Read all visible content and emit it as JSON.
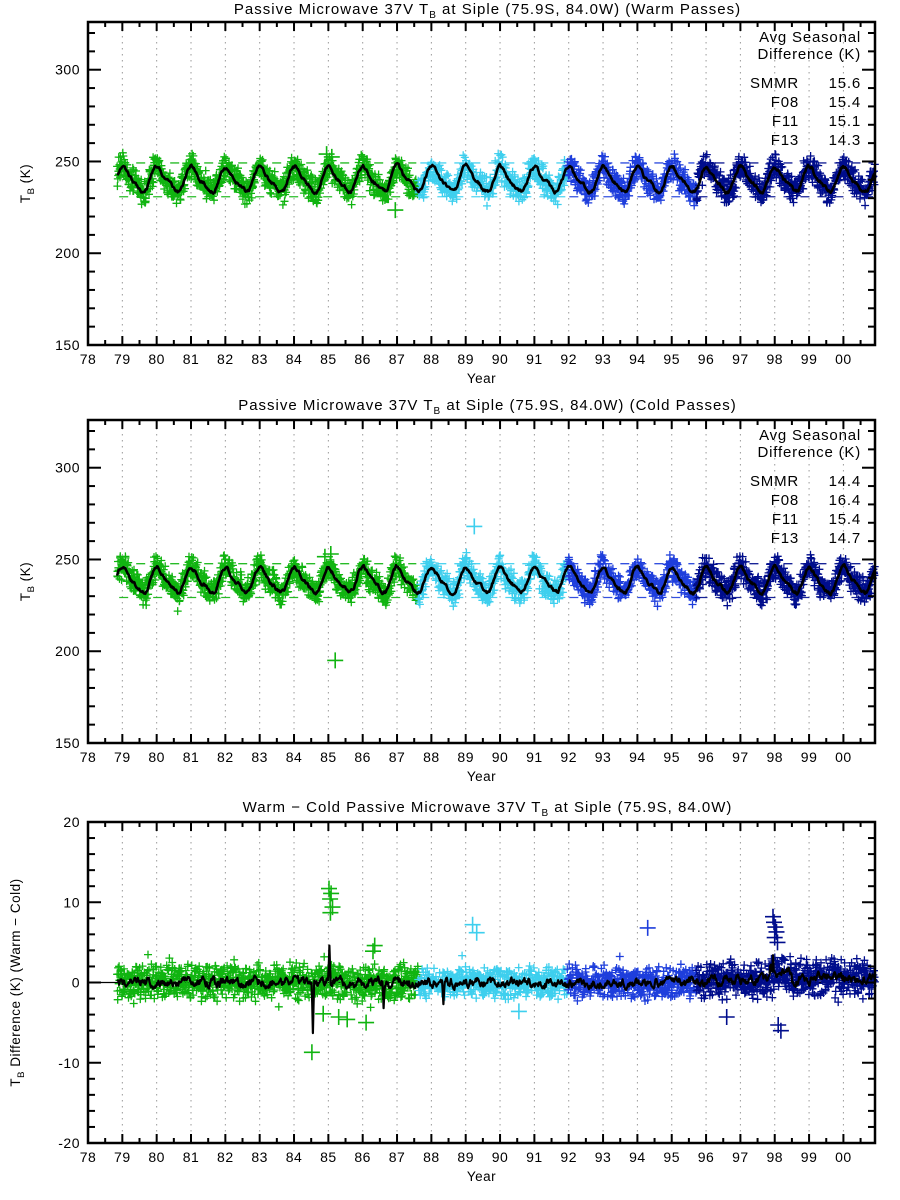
{
  "figure": {
    "background": "#ffffff",
    "text_color": "#000000"
  },
  "chart_data": {
    "type": "scatter",
    "x": {
      "label": "Year",
      "range": [
        1978,
        2000.92
      ],
      "tick_years": [
        1978,
        1979,
        1980,
        1981,
        1982,
        1983,
        1984,
        1985,
        1986,
        1987,
        1988,
        1989,
        1990,
        1991,
        1992,
        1993,
        1994,
        1995,
        1996,
        1997,
        1998,
        1999,
        2000
      ],
      "tick_labels": [
        "78",
        "79",
        "80",
        "81",
        "82",
        "83",
        "84",
        "85",
        "86",
        "87",
        "88",
        "89",
        "90",
        "91",
        "92",
        "93",
        "94",
        "95",
        "96",
        "97",
        "98",
        "99",
        "00"
      ],
      "minor_step": 0.5,
      "gridlines": "vertical-dotted"
    },
    "satellites": [
      {
        "name": "SMMR",
        "from": 1978.85,
        "to": 1987.62,
        "color": "#10b410"
      },
      {
        "name": "F08",
        "from": 1987.62,
        "to": 1991.96,
        "color": "#3ecfee"
      },
      {
        "name": "F11",
        "from": 1991.96,
        "to": 1995.72,
        "color": "#1e3edc"
      },
      {
        "name": "F13",
        "from": 1995.72,
        "to": 2000.92,
        "color": "#000d8c"
      }
    ],
    "panels": [
      {
        "name": "warm-passes",
        "title": {
          "pre": "Passive Microwave 37V T",
          "sub": "B",
          "post": " at Siple (75.9S, 84.0W) (Warm Passes)"
        },
        "y": {
          "label": {
            "pre": "T",
            "sub": "B",
            "post": " (K)"
          },
          "range": [
            150,
            326
          ],
          "major_ticks": [
            150,
            200,
            250,
            300
          ],
          "minor_step": 10
        },
        "series_kind": "tb",
        "seasonal": {
          "mean": 240,
          "amplitude": 7,
          "scatter_spread": 8.5
        },
        "legend": {
          "header": [
            "Avg Seasonal",
            "Difference (K)"
          ],
          "rows": [
            {
              "sat": "SMMR",
              "value": "15.6"
            },
            {
              "sat": "F08",
              "value": "15.4"
            },
            {
              "sat": "F11",
              "value": "15.1"
            },
            {
              "sat": "F13",
              "value": "14.3"
            }
          ]
        },
        "outliers": [
          {
            "sat": "SMMR",
            "t": 1984.95,
            "v": 254
          },
          {
            "sat": "SMMR",
            "t": 1985.1,
            "v": 252.5
          },
          {
            "sat": "SMMR",
            "t": 1986.95,
            "v": 223.5
          }
        ]
      },
      {
        "name": "cold-passes",
        "title": {
          "pre": "Passive Microwave 37V T",
          "sub": "B",
          "post": " at Siple (75.9S, 84.0W) (Cold Passes)"
        },
        "y": {
          "label": {
            "pre": "T",
            "sub": "B",
            "post": " (K)"
          },
          "range": [
            150,
            326
          ],
          "major_ticks": [
            150,
            200,
            250,
            300
          ],
          "minor_step": 10
        },
        "series_kind": "tb",
        "seasonal": {
          "mean": 238.5,
          "amplitude": 7.2,
          "scatter_spread": 8.5
        },
        "legend": {
          "header": [
            "Avg Seasonal",
            "Difference (K)"
          ],
          "rows": [
            {
              "sat": "SMMR",
              "value": "14.4"
            },
            {
              "sat": "F08",
              "value": "16.4"
            },
            {
              "sat": "F11",
              "value": "15.4"
            },
            {
              "sat": "F13",
              "value": "14.7"
            }
          ]
        },
        "outliers": [
          {
            "sat": "SMMR",
            "t": 1984.9,
            "v": 251.5
          },
          {
            "sat": "SMMR",
            "t": 1985.07,
            "v": 253
          },
          {
            "sat": "SMMR",
            "t": 1985.2,
            "v": 195
          },
          {
            "sat": "F08",
            "t": 1989.25,
            "v": 268
          }
        ]
      },
      {
        "name": "warm-minus-cold",
        "title": {
          "pre": "Warm − Cold Passive Microwave 37V T",
          "sub": "B",
          "post": " at Siple (75.9S, 84.0W)"
        },
        "y": {
          "label": {
            "pre": "T",
            "sub": "B",
            "post": " Difference (K) (Warm − Cold)"
          },
          "range": [
            -20,
            20
          ],
          "major_ticks": [
            -20,
            -10,
            0,
            10,
            20
          ],
          "minor_step": 2
        },
        "series_kind": "diff",
        "diff": {
          "zero_line": true,
          "sat_spread": {
            "SMMR": 2.6,
            "F08": 2.2,
            "F11": 2.4,
            "F13": 2.7
          },
          "bias_segments": [
            {
              "from": 1978.85,
              "to": 1996.0,
              "v": 0
            },
            {
              "from": 1996.0,
              "to": 1997.85,
              "v": 0.3
            },
            {
              "from": 1997.85,
              "to": 1998.5,
              "v": 1.3
            },
            {
              "from": 1998.5,
              "to": 2000.92,
              "v": 0.5
            }
          ],
          "black_spikes": [
            {
              "t": 1984.55,
              "v": -6.3
            },
            {
              "t": 1985.03,
              "v": 4.6
            },
            {
              "t": 1986.6,
              "v": -3.2
            },
            {
              "t": 1988.35,
              "v": -2.7
            },
            {
              "t": 1997.95,
              "v": 3.4
            }
          ]
        },
        "outliers": [
          {
            "sat": "SMMR",
            "t": 1985.02,
            "v": 11.7
          },
          {
            "sat": "SMMR",
            "t": 1985.08,
            "v": 11.1
          },
          {
            "sat": "SMMR",
            "t": 1985.05,
            "v": 10.4
          },
          {
            "sat": "SMMR",
            "t": 1985.12,
            "v": 9.4
          },
          {
            "sat": "SMMR",
            "t": 1985.06,
            "v": 8.7
          },
          {
            "sat": "SMMR",
            "t": 1984.52,
            "v": -8.7
          },
          {
            "sat": "SMMR",
            "t": 1986.1,
            "v": -5.0
          },
          {
            "sat": "SMMR",
            "t": 1985.55,
            "v": -4.6
          },
          {
            "sat": "SMMR",
            "t": 1984.85,
            "v": -3.9
          },
          {
            "sat": "SMMR",
            "t": 1985.3,
            "v": -4.3
          },
          {
            "sat": "SMMR",
            "t": 1986.35,
            "v": 4.6
          },
          {
            "sat": "SMMR",
            "t": 1986.3,
            "v": 3.9
          },
          {
            "sat": "F08",
            "t": 1989.2,
            "v": 7.2
          },
          {
            "sat": "F08",
            "t": 1989.32,
            "v": 6.2
          },
          {
            "sat": "F08",
            "t": 1990.55,
            "v": -3.6
          },
          {
            "sat": "F11",
            "t": 1994.3,
            "v": 6.8
          },
          {
            "sat": "F13",
            "t": 1996.6,
            "v": -4.3
          },
          {
            "sat": "F13",
            "t": 1997.95,
            "v": 8.2
          },
          {
            "sat": "F13",
            "t": 1997.98,
            "v": 7.5
          },
          {
            "sat": "F13",
            "t": 1998.02,
            "v": 6.9
          },
          {
            "sat": "F13",
            "t": 1998.05,
            "v": 6.3
          },
          {
            "sat": "F13",
            "t": 1998.0,
            "v": 5.6
          },
          {
            "sat": "F13",
            "t": 1998.08,
            "v": 5.0
          },
          {
            "sat": "F13",
            "t": 1998.1,
            "v": -5.3
          },
          {
            "sat": "F13",
            "t": 1998.18,
            "v": -6.0
          }
        ]
      }
    ]
  }
}
